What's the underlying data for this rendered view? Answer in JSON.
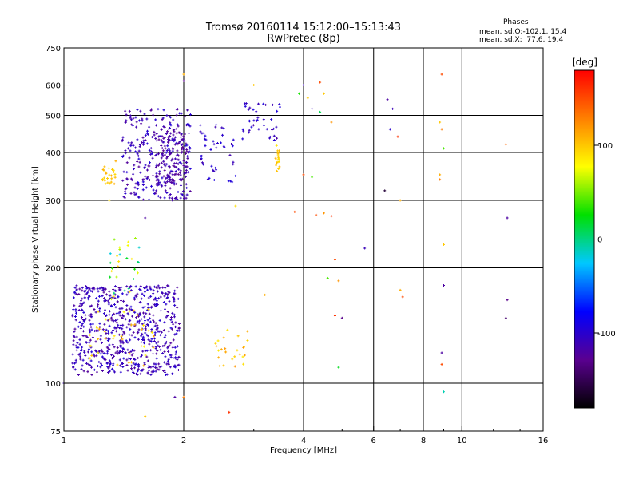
{
  "header": {
    "title_line1": "Tromsø 20160114 15:12:00–15:13:43",
    "title_line2": "RwPretec (8p)",
    "phases_title": "Phases",
    "phases_o": "mean, sd,O:-102.1, 15.4",
    "phases_x": "mean, sd,X:  77.6, 19.4"
  },
  "colorbar": {
    "unit_label": "[deg]",
    "ticks": [
      "100",
      "0",
      "-100"
    ],
    "tick_values": [
      100,
      0,
      -100
    ],
    "range": [
      -180,
      180
    ],
    "colors": [
      "#000000",
      "#5a0090",
      "#0000ff",
      "#00c8ff",
      "#00e000",
      "#ffff00",
      "#ff8000",
      "#ff0000"
    ]
  },
  "chart_data": {
    "type": "scatter",
    "title": "Tromsø 20160114 15:12:00–15:13:43",
    "subtitle": "RwPretec (8p)",
    "xlabel": "Frequency [MHz]",
    "ylabel": "Stationary phase Virtual Height [km]",
    "xscale": "log",
    "yscale": "log",
    "xlim": [
      1,
      16
    ],
    "ylim": [
      75,
      750
    ],
    "x_ticks": [
      "1",
      "2",
      "4",
      "6",
      "8",
      "10",
      "16"
    ],
    "x_tick_values": [
      1,
      2,
      4,
      6,
      8,
      10,
      16
    ],
    "y_ticks": [
      "75",
      "100",
      "200",
      "300",
      "400",
      "500",
      "600",
      "750"
    ],
    "y_tick_values": [
      75,
      100,
      200,
      300,
      400,
      500,
      600,
      750
    ],
    "x_grid": [
      2,
      4,
      6,
      8,
      10
    ],
    "y_grid": [
      100,
      200,
      300,
      400,
      500,
      600
    ],
    "grid": true,
    "color_by": "phase [deg]",
    "clusters": [
      {
        "x": [
          1.05,
          1.95
        ],
        "y": [
          105,
          180
        ],
        "n": 700,
        "phase": [
          -125,
          -95
        ]
      },
      {
        "x": [
          1.4,
          2.08
        ],
        "y": [
          300,
          520
        ],
        "n": 280,
        "phase": [
          -125,
          -95
        ]
      },
      {
        "x": [
          1.7,
          2.05
        ],
        "y": [
          330,
          470
        ],
        "n": 120,
        "phase": [
          -130,
          -110
        ]
      },
      {
        "x": [
          2.2,
          2.7
        ],
        "y": [
          330,
          480
        ],
        "n": 45,
        "phase": [
          -115,
          -90
        ]
      },
      {
        "x": [
          2.8,
          3.5
        ],
        "y": [
          430,
          540
        ],
        "n": 40,
        "phase": [
          -120,
          -90
        ]
      },
      {
        "x": [
          1.25,
          1.35
        ],
        "y": [
          330,
          370
        ],
        "n": 25,
        "phase": [
          85,
          110
        ]
      },
      {
        "x": [
          3.4,
          3.5
        ],
        "y": [
          350,
          420
        ],
        "n": 20,
        "phase": [
          85,
          110
        ]
      },
      {
        "x": [
          2.4,
          2.9
        ],
        "y": [
          110,
          140
        ],
        "n": 25,
        "phase": [
          85,
          120
        ]
      },
      {
        "x": [
          1.15,
          1.7
        ],
        "y": [
          110,
          160
        ],
        "n": 40,
        "phase": [
          80,
          115
        ]
      },
      {
        "x": [
          1.3,
          1.55
        ],
        "y": [
          160,
          245
        ],
        "n": 30,
        "phase": [
          -20,
          100
        ]
      }
    ],
    "points": [
      {
        "x": 2.0,
        "y": 640,
        "phase": 110
      },
      {
        "x": 2.0,
        "y": 615,
        "phase": -130
      },
      {
        "x": 3.0,
        "y": 600,
        "phase": 100
      },
      {
        "x": 4.0,
        "y": 600,
        "phase": -110
      },
      {
        "x": 4.4,
        "y": 610,
        "phase": 150
      },
      {
        "x": 3.9,
        "y": 570,
        "phase": 30
      },
      {
        "x": 4.1,
        "y": 555,
        "phase": 100
      },
      {
        "x": 4.5,
        "y": 570,
        "phase": 100
      },
      {
        "x": 4.2,
        "y": 520,
        "phase": -110
      },
      {
        "x": 4.4,
        "y": 510,
        "phase": 10
      },
      {
        "x": 4.7,
        "y": 480,
        "phase": 120
      },
      {
        "x": 6.5,
        "y": 550,
        "phase": -120
      },
      {
        "x": 6.7,
        "y": 520,
        "phase": -110
      },
      {
        "x": 8.9,
        "y": 640,
        "phase": 150
      },
      {
        "x": 8.8,
        "y": 480,
        "phase": 100
      },
      {
        "x": 8.9,
        "y": 460,
        "phase": 130
      },
      {
        "x": 9.0,
        "y": 410,
        "phase": 40
      },
      {
        "x": 8.8,
        "y": 350,
        "phase": 110
      },
      {
        "x": 8.8,
        "y": 340,
        "phase": 130
      },
      {
        "x": 6.6,
        "y": 460,
        "phase": -100
      },
      {
        "x": 6.9,
        "y": 440,
        "phase": 160
      },
      {
        "x": 7.0,
        "y": 300,
        "phase": 110
      },
      {
        "x": 6.4,
        "y": 318,
        "phase": -160
      },
      {
        "x": 12.9,
        "y": 420,
        "phase": 140
      },
      {
        "x": 13.0,
        "y": 270,
        "phase": -120
      },
      {
        "x": 4.0,
        "y": 350,
        "phase": 150
      },
      {
        "x": 4.2,
        "y": 345,
        "phase": 40
      },
      {
        "x": 3.8,
        "y": 280,
        "phase": 150
      },
      {
        "x": 4.3,
        "y": 275,
        "phase": 150
      },
      {
        "x": 4.5,
        "y": 278,
        "phase": 120
      },
      {
        "x": 4.7,
        "y": 273,
        "phase": 160
      },
      {
        "x": 5.7,
        "y": 225,
        "phase": -110
      },
      {
        "x": 4.8,
        "y": 210,
        "phase": 150
      },
      {
        "x": 4.6,
        "y": 188,
        "phase": 40
      },
      {
        "x": 4.9,
        "y": 185,
        "phase": 120
      },
      {
        "x": 4.8,
        "y": 150,
        "phase": 160
      },
      {
        "x": 5.0,
        "y": 148,
        "phase": -130
      },
      {
        "x": 7.0,
        "y": 175,
        "phase": 110
      },
      {
        "x": 7.1,
        "y": 168,
        "phase": 150
      },
      {
        "x": 9.0,
        "y": 230,
        "phase": 100
      },
      {
        "x": 9.0,
        "y": 180,
        "phase": -120
      },
      {
        "x": 8.9,
        "y": 120,
        "phase": -120
      },
      {
        "x": 8.9,
        "y": 112,
        "phase": 150
      },
      {
        "x": 9.0,
        "y": 95,
        "phase": -10
      },
      {
        "x": 13.0,
        "y": 165,
        "phase": -130
      },
      {
        "x": 12.9,
        "y": 148,
        "phase": -140
      },
      {
        "x": 4.9,
        "y": 110,
        "phase": 20
      },
      {
        "x": 2.6,
        "y": 84,
        "phase": 160
      },
      {
        "x": 1.9,
        "y": 92,
        "phase": -120
      },
      {
        "x": 2.0,
        "y": 92,
        "phase": 130
      },
      {
        "x": 1.6,
        "y": 82,
        "phase": 100
      },
      {
        "x": 1.0,
        "y": 100,
        "phase": -110
      },
      {
        "x": 1.6,
        "y": 270,
        "phase": -120
      },
      {
        "x": 1.3,
        "y": 300,
        "phase": 90
      },
      {
        "x": 1.35,
        "y": 380,
        "phase": 110
      },
      {
        "x": 1.45,
        "y": 410,
        "phase": -110
      },
      {
        "x": 2.7,
        "y": 290,
        "phase": 90
      },
      {
        "x": 3.2,
        "y": 170,
        "phase": 110
      }
    ]
  },
  "axes": {
    "xlabel": "Frequency [MHz]",
    "ylabel": "Stationary phase Virtual Height [km]"
  }
}
